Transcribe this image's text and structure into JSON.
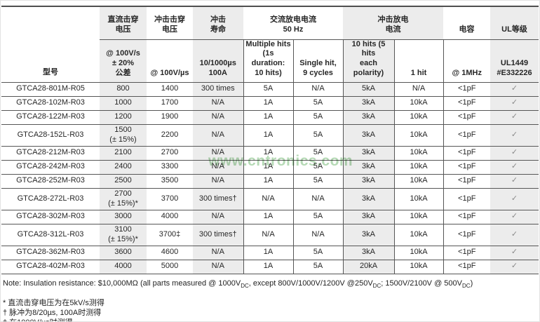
{
  "watermark": "www.cntronics.com",
  "colors": {
    "band": "#ececec",
    "border_dark": "#4f4f4f",
    "border_row": "#565656",
    "watermark_green": "#aed6ae",
    "check_gray": "#8a8a8a"
  },
  "table": {
    "model_header": "型号",
    "groups": [
      {
        "label": "直流击穿\n电压",
        "span": 1,
        "shaded": true
      },
      {
        "label": "冲击击穿\n电压",
        "span": 1,
        "shaded": false
      },
      {
        "label": "冲击\n寿命",
        "span": 1,
        "shaded": true
      },
      {
        "label": "交流放电电流\n50 Hz",
        "span": 2,
        "shaded": false
      },
      {
        "label": "冲击放电\n电流",
        "span": 2,
        "shaded": true
      },
      {
        "label": "电容",
        "span": 1,
        "shaded": false
      },
      {
        "label": "UL等级",
        "span": 1,
        "shaded": true
      }
    ],
    "subheaders": [
      "@ 100V/s\n± 20%\n公差",
      "@ 100V/µs",
      "10/1000µs\n100A",
      "Multiple hits\n(1s duration:\n10 hits)",
      "Single hit,\n9 cycles",
      "10 hits (5 hits\neach polarity)",
      "1 hit",
      "@ 1MHz",
      "UL1449\n#E332226"
    ],
    "shaded_data_cols": [
      0,
      2,
      5,
      8
    ],
    "vline_data_cols": [
      3,
      4,
      5,
      6,
      7
    ],
    "check_col": 8,
    "rows": [
      {
        "model": "GTCA28-801M-R05",
        "cells": [
          "800",
          "1400",
          "300 times",
          "5A",
          "N/A",
          "5kA",
          "N/A",
          "<1pF",
          "✓"
        ],
        "double": false
      },
      {
        "model": "GTCA28-102M-R03",
        "cells": [
          "1000",
          "1700",
          "N/A",
          "1A",
          "5A",
          "3kA",
          "10kA",
          "<1pF",
          "✓"
        ],
        "double": false
      },
      {
        "model": "GTCA28-122M-R03",
        "cells": [
          "1200",
          "1900",
          "N/A",
          "1A",
          "5A",
          "3kA",
          "10kA",
          "<1pF",
          "✓"
        ],
        "double": false
      },
      {
        "model": "GTCA28-152L-R03",
        "cells": [
          "1500\n(± 15%)",
          "2200",
          "N/A",
          "1A",
          "5A",
          "3kA",
          "10kA",
          "<1pF",
          "✓"
        ],
        "double": true
      },
      {
        "model": "GTCA28-212M-R03",
        "cells": [
          "2100",
          "2700",
          "N/A",
          "1A",
          "5A",
          "3kA",
          "10kA",
          "<1pF",
          "✓"
        ],
        "double": false
      },
      {
        "model": "GTCA28-242M-R03",
        "cells": [
          "2400",
          "3300",
          "N/A",
          "1A",
          "5A",
          "3kA",
          "10kA",
          "<1pF",
          "✓"
        ],
        "double": false
      },
      {
        "model": "GTCA28-252M-R03",
        "cells": [
          "2500",
          "3500",
          "N/A",
          "1A",
          "5A",
          "3kA",
          "10kA",
          "<1pF",
          "✓"
        ],
        "double": false
      },
      {
        "model": "GTCA28-272L-R03",
        "cells": [
          "2700\n(± 15%)*",
          "3700",
          "300 times†",
          "N/A",
          "N/A",
          "3kA",
          "10kA",
          "<1pF",
          "✓"
        ],
        "double": true
      },
      {
        "model": "GTCA28-302M-R03",
        "cells": [
          "3000",
          "4000",
          "N/A",
          "1A",
          "5A",
          "3kA",
          "10kA",
          "<1pF",
          "✓"
        ],
        "double": false
      },
      {
        "model": "GTCA28-312L-R03",
        "cells": [
          "3100\n(± 15%)*",
          "3700‡",
          "300 times†",
          "N/A",
          "N/A",
          "3kA",
          "10kA",
          "<1pF",
          "✓"
        ],
        "double": true
      },
      {
        "model": "GTCA28-362M-R03",
        "cells": [
          "3600",
          "4600",
          "N/A",
          "1A",
          "5A",
          "3kA",
          "10kA",
          "<1pF",
          "✓"
        ],
        "double": false
      },
      {
        "model": "GTCA28-402M-R03",
        "cells": [
          "4000",
          "5000",
          "N/A",
          "1A",
          "5A",
          "20kA",
          "10kA",
          "<1pF",
          "✓"
        ],
        "double": false
      }
    ]
  },
  "note_segments": [
    {
      "text": "Note: Insulation resistance: $10,000MΩ (all parts measured @ 1000V"
    },
    {
      "sub": "DC"
    },
    {
      "text": ", except 800V/1000V/1200V @250V"
    },
    {
      "sub": "DC"
    },
    {
      "text": "; 1500V/2100V @ 500V"
    },
    {
      "sub": "DC"
    },
    {
      "text": ")"
    }
  ],
  "footnotes": [
    "* 直流击穿电压为在5kV/s测得",
    "† 脉冲为8/20µs, 100A时测得",
    "‡ 在1000V/us时测得"
  ]
}
